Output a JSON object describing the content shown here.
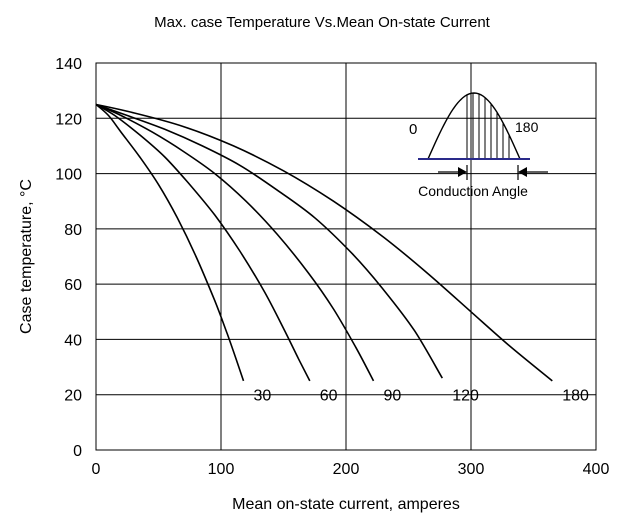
{
  "chart_data": {
    "type": "line",
    "title": "Max. case Temperature Vs.Mean  On-state Current",
    "xlabel": "Mean on-state  current, amperes",
    "ylabel": "Case temperature, °C",
    "xlim": [
      0,
      400
    ],
    "ylim": [
      0,
      140
    ],
    "xticks": [
      "0",
      "100",
      "200",
      "300",
      "400"
    ],
    "yticks": [
      "0",
      "20",
      "40",
      "60",
      "80",
      "100",
      "120",
      "140"
    ],
    "grid": true,
    "series": [
      {
        "name": "30",
        "points": [
          [
            0,
            125
          ],
          [
            10,
            121
          ],
          [
            20,
            115
          ],
          [
            35,
            106
          ],
          [
            50,
            96
          ],
          [
            65,
            84
          ],
          [
            80,
            70
          ],
          [
            95,
            54
          ],
          [
            105,
            42
          ],
          [
            112,
            33
          ],
          [
            118,
            25
          ]
        ]
      },
      {
        "name": "60",
        "points": [
          [
            0,
            125
          ],
          [
            15,
            121
          ],
          [
            35,
            114
          ],
          [
            55,
            106
          ],
          [
            75,
            96
          ],
          [
            95,
            85
          ],
          [
            115,
            72
          ],
          [
            135,
            57
          ],
          [
            150,
            44
          ],
          [
            162,
            33
          ],
          [
            171,
            25
          ]
        ]
      },
      {
        "name": "90",
        "points": [
          [
            0,
            125
          ],
          [
            20,
            121
          ],
          [
            45,
            115
          ],
          [
            70,
            108
          ],
          [
            95,
            100
          ],
          [
            120,
            90
          ],
          [
            145,
            78
          ],
          [
            170,
            64
          ],
          [
            190,
            51
          ],
          [
            208,
            37
          ],
          [
            222,
            25
          ]
        ]
      },
      {
        "name": "120",
        "points": [
          [
            0,
            125
          ],
          [
            25,
            121
          ],
          [
            55,
            116
          ],
          [
            85,
            110
          ],
          [
            115,
            103
          ],
          [
            145,
            94
          ],
          [
            175,
            84
          ],
          [
            205,
            71
          ],
          [
            230,
            58
          ],
          [
            255,
            43
          ],
          [
            277,
            26
          ]
        ]
      },
      {
        "name": "180",
        "points": [
          [
            0,
            125
          ],
          [
            30,
            122
          ],
          [
            70,
            117
          ],
          [
            110,
            110
          ],
          [
            150,
            101
          ],
          [
            190,
            90
          ],
          [
            230,
            77
          ],
          [
            265,
            64
          ],
          [
            300,
            50
          ],
          [
            330,
            38
          ],
          [
            365,
            25
          ]
        ]
      }
    ],
    "inset": {
      "left_label": "0",
      "right_label": "180",
      "caption": "Conduction Angle"
    }
  }
}
